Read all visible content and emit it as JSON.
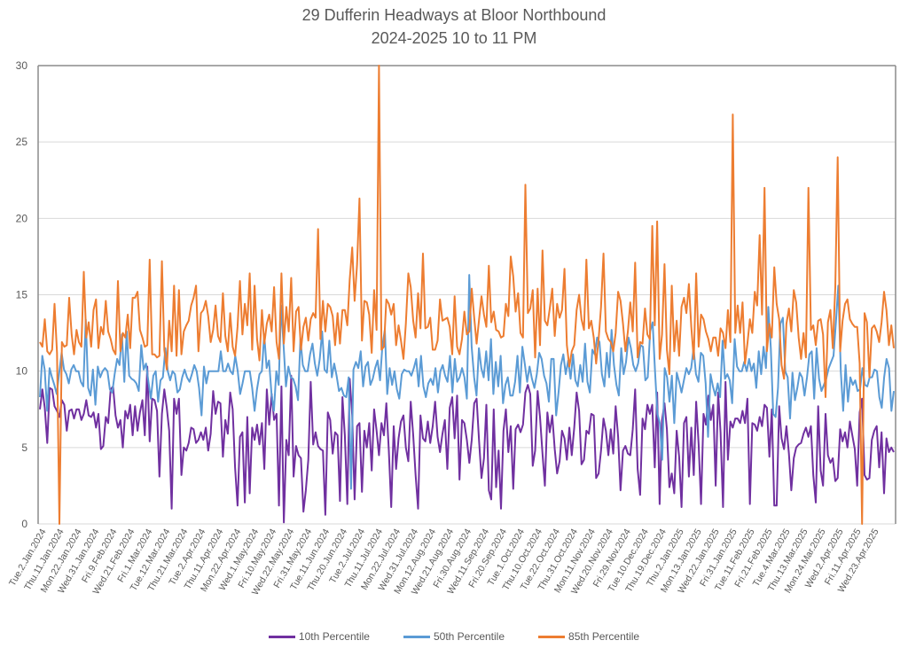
{
  "chart_data": {
    "type": "line",
    "title": "29 Dufferin Headways at Bloor Northbound",
    "subtitle": "2024-2025 10 to 11 PM",
    "xlabel": "",
    "ylabel": "",
    "ylim": [
      0,
      30
    ],
    "yticks": [
      0,
      5,
      10,
      15,
      20,
      25,
      30
    ],
    "grid": true,
    "legend_position": "bottom",
    "x_tick_labels": [
      "Tue.2.Jan.2024",
      "Thu.11.Jan.2024",
      "Mon.22.Jan.2024",
      "Wed.31.Jan.2024",
      "Fri.9.Feb.2024",
      "Wed.21.Feb.2024",
      "Fri.1.Mar.2024",
      "Tue.12.Mar.2024",
      "Thu.21.Mar.2024",
      "Tue.2.Apr.2024",
      "Thu.11.Apr.2024",
      "Mon.22.Apr.2024",
      "Wed.1.May.2024",
      "Fri.10.May.2024",
      "Wed.22.May.2024",
      "Fri.31.May.2024",
      "Tue.11.Jun.2024",
      "Thu.20.Jun.2024",
      "Tue.2.Jul.2024",
      "Thu.11.Jul.2024",
      "Mon.22.Jul.2024",
      "Wed.31.Jul.2024",
      "Mon.12.Aug.2024",
      "Wed.21.Aug.2024",
      "Fri.30.Aug.2024",
      "Wed.11.Sep.2024",
      "Fri.20.Sep.2024",
      "Tue.1.Oct.2024",
      "Thu.10.Oct.2024",
      "Tue.22.Oct.2024",
      "Thu.31.Oct.2024",
      "Mon.11.Nov.2024",
      "Wed.20.Nov.2024",
      "Fri.29.Nov.2024",
      "Tue.10.Dec.2024",
      "Thu.19.Dec.2024",
      "Thu.2.Jan.2025",
      "Mon.13.Jan.2025",
      "Wed.22.Jan.2025",
      "Fri.31.Jan.2025",
      "Tue.11.Feb.2025",
      "Fri.21.Feb.2025",
      "Tue.4.Mar.2025",
      "Thu.13.Mar.2025",
      "Mon.24.Mar.2025",
      "Wed.2.Apr.2025",
      "Fri.11.Apr.2025",
      "Wed.23.Apr.2025"
    ],
    "series": [
      {
        "name": "10th Percentile",
        "color": "#7030A0",
        "values": [
          7.5,
          8.8,
          7.6,
          5.3,
          8.9,
          8.8,
          7.7,
          7.4,
          7.0,
          8.1,
          7.8,
          6.1,
          7.4,
          7.5,
          6.9,
          7.5,
          7.5,
          6.8,
          7.2,
          8.1,
          7.1,
          7.0,
          7.3,
          6.3,
          7.2,
          4.9,
          5.1,
          7.0,
          6.6,
          8.8,
          9.0,
          7.1,
          6.3,
          6.8,
          5.0,
          7.4,
          6.9,
          7.8,
          5.8,
          7.7,
          6.1,
          7.3,
          8.1,
          5.8,
          10.3,
          5.4,
          8.2,
          8.1,
          7.4,
          3.1,
          7.2,
          8.8,
          7.6,
          6.1,
          1.0,
          8.2,
          7.2,
          8.2,
          3.2,
          5.0,
          4.8,
          5.3,
          6.3,
          6.2,
          5.3,
          5.5,
          6.0,
          5.5,
          6.3,
          4.8,
          5.9,
          8.7,
          7.2,
          8.0,
          7.9,
          4.4,
          6.8,
          5.9,
          8.6,
          7.5,
          3.7,
          1.2,
          5.7,
          6.0,
          1.4,
          7.0,
          2.0,
          6.3,
          5.5,
          6.5,
          5.2,
          6.6,
          3.6,
          8.8,
          6.5,
          8.5,
          6.8,
          7.2,
          1.2,
          9.0,
          0.1,
          5.5,
          4.5,
          9.7,
          3.1,
          5.1,
          4.5,
          4.3,
          0.8,
          2.2,
          4.2,
          9.3,
          5.2,
          6.0,
          5.1,
          4.9,
          4.8,
          0.6,
          7.3,
          6.8,
          4.6,
          6.0,
          5.8,
          1.5,
          8.3,
          5.8,
          1.3,
          9.5,
          7.1,
          1.6,
          6.4,
          6.6,
          2.1,
          6.1,
          5.0,
          6.6,
          3.5,
          7.5,
          6.1,
          4.5,
          6.6,
          5.8,
          7.9,
          4.8,
          1.1,
          6.4,
          3.6,
          5.6,
          6.7,
          7.1,
          5.0,
          4.1,
          8.0,
          5.8,
          3.2,
          1.0,
          7.1,
          5.6,
          5.4,
          6.7,
          5.3,
          6.4,
          8.0,
          5.7,
          4.7,
          5.9,
          6.8,
          3.6,
          7.6,
          8.3,
          5.6,
          8.4,
          2.9,
          6.8,
          6.6,
          5.5,
          4.0,
          5.5,
          7.9,
          8.2,
          5.4,
          3.0,
          4.3,
          7.8,
          2.2,
          1.6,
          7.5,
          2.4,
          4.8,
          1.0,
          6.1,
          7.5,
          4.7,
          6.4,
          2.3,
          6.2,
          6.5,
          6.0,
          6.5,
          8.6,
          9.1,
          8.5,
          3.8,
          4.8,
          8.7,
          7.0,
          4.6,
          2.5,
          7.3,
          6.0,
          7.1,
          4.9,
          3.3,
          4.1,
          6.1,
          5.6,
          4.2,
          6.3,
          4.5,
          6.3,
          8.6,
          7.4,
          3.9,
          4.2,
          6.1,
          5.9,
          7.2,
          7.1,
          3.0,
          3.3,
          4.8,
          6.9,
          6.1,
          4.5,
          6.2,
          4.6,
          7.7,
          5.7,
          2.2,
          4.8,
          5.1,
          4.6,
          4.5,
          6.2,
          8.8,
          3.6,
          1.9,
          6.9,
          6.2,
          7.8,
          7.2,
          7.8,
          3.7,
          8.6,
          1.3,
          6.8,
          7.9,
          6.2,
          2.4,
          3.3,
          2.0,
          6.1,
          4.4,
          1.1,
          6.6,
          7.0,
          3.1,
          6.3,
          3.2,
          8.0,
          5.2,
          1.3,
          7.2,
          6.5,
          8.4,
          6.8,
          7.8,
          2.5,
          8.6,
          6.0,
          1.1,
          9.3,
          4.2,
          6.7,
          6.3,
          6.9,
          6.9,
          6.6,
          7.4,
          6.6,
          8.2,
          1.3,
          6.6,
          6.5,
          6.1,
          7.0,
          6.4,
          7.8,
          7.6,
          4.4,
          7.5,
          1.2,
          1.2,
          7.7,
          5.6,
          4.9,
          6.4,
          4.6,
          2.2,
          4.3,
          5.0,
          5.2,
          5.3,
          5.9,
          6.3,
          5.7,
          6.4,
          3.2,
          1.4,
          7.7,
          3.5,
          2.5,
          7.2,
          4.5,
          4.0,
          4.3,
          2.8,
          3.0,
          6.2,
          5.4,
          6.0,
          5.0,
          6.7,
          5.8,
          4.9,
          2.5,
          7.3,
          8.2,
          3.2,
          2.9,
          3.0,
          5.5,
          6.1,
          6.4,
          3.7,
          6.0,
          2.0,
          5.6,
          4.7,
          5.0,
          4.7
        ]
      },
      {
        "name": "50th Percentile",
        "color": "#5B9BD5",
        "values": [
          8.3,
          11.0,
          10.1,
          7.4,
          10.2,
          9.6,
          9.1,
          8.5,
          9.9,
          11.2,
          10.1,
          9.8,
          9.2,
          10.1,
          10.4,
          10.0,
          10.0,
          9.3,
          9.0,
          13.4,
          8.9,
          8.4,
          10.1,
          7.8,
          10.3,
          9.6,
          10.0,
          10.2,
          10.0,
          8.8,
          8.6,
          9.8,
          10.8,
          10.4,
          12.4,
          9.3,
          12.6,
          9.7,
          9.5,
          9.4,
          9.2,
          8.7,
          11.7,
          10.1,
          10.5,
          9.3,
          8.2,
          9.7,
          10.0,
          8.0,
          9.4,
          9.6,
          11.5,
          10.0,
          9.4,
          10.0,
          9.8,
          8.6,
          8.8,
          9.6,
          10.1,
          9.6,
          9.3,
          9.8,
          10.4,
          10.0,
          8.9,
          7.1,
          10.3,
          9.2,
          10.0,
          10.0,
          10.0,
          10.0,
          10.0,
          11.3,
          10.0,
          10.0,
          10.5,
          10.0,
          9.8,
          11.0,
          10.0,
          8.5,
          9.2,
          10.0,
          10.0,
          10.0,
          8.9,
          7.4,
          8.8,
          9.8,
          10.0,
          12.4,
          10.2,
          10.7,
          8.5,
          7.4,
          10.0,
          9.1,
          14.3,
          11.7,
          9.0,
          10.3,
          9.6,
          9.5,
          9.0,
          8.1,
          12.1,
          10.4,
          10.0,
          10.0,
          11.1,
          11.8,
          10.5,
          9.7,
          10.8,
          12.6,
          10.1,
          9.9,
          12.0,
          9.6,
          10.5,
          9.7,
          8.7,
          8.9,
          8.4,
          8.3,
          9.6,
          2.3,
          10.1,
          10.6,
          10.2,
          11.3,
          9.0,
          10.3,
          10.6,
          9.1,
          9.5,
          10.2,
          10.7,
          9.4,
          11.7,
          12.7,
          8.5,
          10.2,
          9.1,
          10.0,
          8.8,
          8.2,
          9.8,
          10.1,
          10.0,
          10.0,
          9.7,
          10.2,
          10.8,
          9.0,
          11.0,
          9.0,
          8.3,
          9.2,
          9.5,
          9.1,
          10.2,
          8.6,
          10.0,
          10.4,
          9.7,
          9.3,
          11.0,
          8.6,
          10.8,
          9.3,
          9.6,
          10.2,
          9.6,
          8.2,
          16.3,
          11.6,
          9.6,
          8.4,
          11.5,
          10.2,
          9.6,
          11.3,
          9.4,
          12.1,
          8.5,
          10.6,
          9.0,
          11.0,
          7.9,
          9.1,
          9.6,
          8.4,
          8.4,
          9.3,
          11.0,
          8.6,
          11.6,
          10.5,
          9.3,
          10.3,
          9.5,
          8.9,
          9.8,
          11.2,
          10.8,
          9.7,
          9.2,
          8.0,
          10.8,
          10.8,
          7.1,
          8.6,
          10.4,
          11.1,
          9.8,
          10.7,
          9.5,
          11.1,
          9.4,
          9.0,
          10.4,
          9.3,
          11.8,
          9.3,
          8.6,
          11.4,
          11.1,
          12.2,
          11.9,
          9.8,
          9.0,
          11.2,
          9.6,
          12.7,
          10.4,
          9.1,
          8.4,
          11.5,
          9.8,
          10.6,
          12.2,
          11.5,
          10.4,
          10.0,
          10.5,
          11.7,
          11.6,
          9.4,
          9.6,
          12.6,
          13.2,
          10.0,
          7.2,
          6.6,
          4.2,
          10.2,
          9.6,
          8.0,
          9.7,
          6.6,
          9.9,
          9.3,
          8.6,
          9.4,
          10.2,
          9.8,
          10.2,
          11.5,
          9.8,
          9.3,
          11.2,
          11.0,
          9.2,
          5.7,
          9.8,
          9.0,
          8.4,
          9.2,
          8.3,
          12.0,
          9.5,
          9.8,
          9.4,
          7.9,
          12.1,
          10.3,
          10.0,
          10.0,
          10.6,
          10.0,
          10.8,
          10.0,
          10.5,
          8.9,
          11.3,
          9.8,
          11.6,
          10.2,
          14.2,
          11.5,
          7.2,
          7.0,
          8.9,
          13.1,
          13.5,
          10.0,
          9.6,
          6.9,
          9.9,
          8.1,
          8.9,
          9.9,
          9.6,
          8.4,
          9.6,
          11.1,
          11.3,
          8.2,
          11.5,
          9.5,
          8.7,
          9.1,
          9.5,
          10.2,
          10.6,
          11.0,
          13.2,
          15.6,
          10.0,
          7.4,
          10.4,
          8.0,
          9.6,
          9.1,
          9.4,
          8.7,
          8.8,
          10.2,
          9.1,
          9.0,
          9.6,
          9.6,
          10.1,
          10.0,
          8.3,
          7.6,
          9.6,
          10.8,
          10.2,
          7.4,
          8.7
        ]
      },
      {
        "name": "85th Percentile",
        "color": "#ED7D31",
        "values": [
          11.9,
          11.6,
          13.4,
          11.3,
          11.1,
          11.4,
          14.4,
          11.2,
          0.0,
          11.9,
          11.6,
          11.7,
          14.8,
          12.4,
          11.1,
          12.7,
          11.9,
          11.6,
          16.5,
          12.2,
          13.2,
          11.6,
          14.0,
          14.7,
          11.5,
          12.9,
          12.4,
          14.6,
          12.6,
          12.1,
          11.4,
          11.1,
          15.9,
          11.3,
          12.5,
          12.2,
          13.7,
          11.5,
          14.8,
          14.8,
          15.2,
          12.7,
          12.2,
          11.6,
          11.7,
          17.3,
          11.1,
          11.1,
          10.9,
          11.0,
          17.2,
          11.4,
          10.1,
          13.3,
          11.3,
          15.6,
          11.0,
          15.3,
          11.1,
          12.6,
          13.0,
          13.3,
          14.3,
          14.8,
          15.6,
          11.3,
          13.8,
          14.0,
          14.6,
          13.6,
          11.9,
          12.7,
          14.3,
          12.3,
          11.9,
          15.1,
          12.3,
          11.3,
          13.8,
          11.6,
          11.0,
          12.9,
          15.9,
          12.4,
          14.4,
          13.0,
          16.4,
          11.4,
          15.6,
          12.1,
          10.7,
          14.0,
          11.8,
          13.1,
          13.7,
          12.6,
          15.5,
          11.9,
          10.8,
          16.4,
          11.8,
          14.2,
          12.6,
          16.1,
          11.3,
          13.9,
          14.2,
          11.4,
          12.9,
          13.5,
          12.0,
          13.4,
          13.8,
          13.5,
          19.3,
          12.1,
          14.6,
          12.6,
          14.4,
          14.2,
          13.6,
          11.7,
          13.8,
          11.8,
          14.0,
          14.0,
          13.0,
          16.0,
          18.1,
          14.6,
          17.0,
          21.3,
          12.0,
          14.6,
          14.5,
          13.7,
          11.2,
          15.3,
          12.7,
          30.0,
          11.4,
          11.6,
          14.7,
          14.4,
          13.7,
          14.4,
          11.7,
          13.0,
          12.0,
          10.8,
          13.1,
          16.4,
          15.5,
          13.3,
          12.2,
          15.1,
          12.8,
          17.7,
          12.8,
          12.9,
          13.5,
          11.4,
          11.4,
          12.0,
          14.7,
          13.3,
          13.4,
          13.5,
          12.9,
          11.1,
          14.9,
          11.6,
          11.1,
          12.1,
          13.9,
          12.4,
          12.6,
          15.4,
          13.5,
          11.8,
          13.4,
          14.9,
          13.7,
          12.9,
          16.9,
          13.2,
          13.9,
          12.7,
          12.6,
          12.2,
          12.3,
          14.4,
          13.6,
          17.5,
          16.2,
          13.9,
          15.1,
          12.5,
          12.2,
          22.2,
          13.8,
          14.1,
          15.3,
          10.9,
          15.4,
          11.7,
          17.9,
          13.3,
          13.0,
          14.1,
          15.4,
          12.3,
          14.4,
          13.5,
          14.0,
          16.7,
          11.7,
          10.3,
          11.3,
          11.7,
          14.0,
          15.0,
          13.4,
          12.7,
          17.3,
          12.8,
          13.3,
          12.2,
          10.5,
          12.1,
          14.2,
          17.7,
          12.6,
          12.1,
          11.9,
          11.3,
          12.5,
          15.2,
          14.6,
          13.1,
          11.3,
          12.6,
          14.5,
          12.6,
          17.1,
          10.9,
          11.9,
          11.8,
          14.1,
          12.4,
          12.1,
          19.5,
          13.0,
          19.8,
          10.8,
          12.4,
          17.0,
          11.4,
          9.8,
          15.6,
          11.3,
          13.3,
          11.0,
          14.2,
          14.8,
          13.8,
          15.7,
          12.9,
          10.8,
          16.4,
          11.6,
          13.7,
          13.4,
          12.6,
          12.1,
          11.3,
          12.2,
          12.2,
          11.0,
          12.8,
          12.5,
          11.5,
          14.0,
          11.9,
          26.8,
          12.5,
          14.3,
          12.5,
          14.5,
          10.5,
          11.8,
          13.4,
          12.5,
          15.2,
          14.3,
          18.9,
          13.7,
          22.0,
          11.3,
          13.1,
          12.2,
          16.8,
          14.4,
          13.4,
          10.4,
          9.5,
          13.1,
          14.1,
          12.6,
          15.3,
          14.5,
          12.2,
          10.8,
          12.5,
          10.9,
          22.0,
          12.7,
          13.0,
          11.7,
          13.3,
          13.4,
          12.4,
          8.3,
          13.2,
          14.0,
          11.5,
          15.5,
          24.0,
          11.3,
          13.3,
          14.4,
          14.7,
          13.4,
          13.1,
          12.9,
          12.9,
          10.5,
          0.0,
          13.8,
          13.2,
          9.6,
          12.8,
          13.0,
          12.6,
          11.9,
          13.2,
          15.2,
          14.0,
          11.7,
          13.0,
          11.5
        ]
      }
    ]
  }
}
